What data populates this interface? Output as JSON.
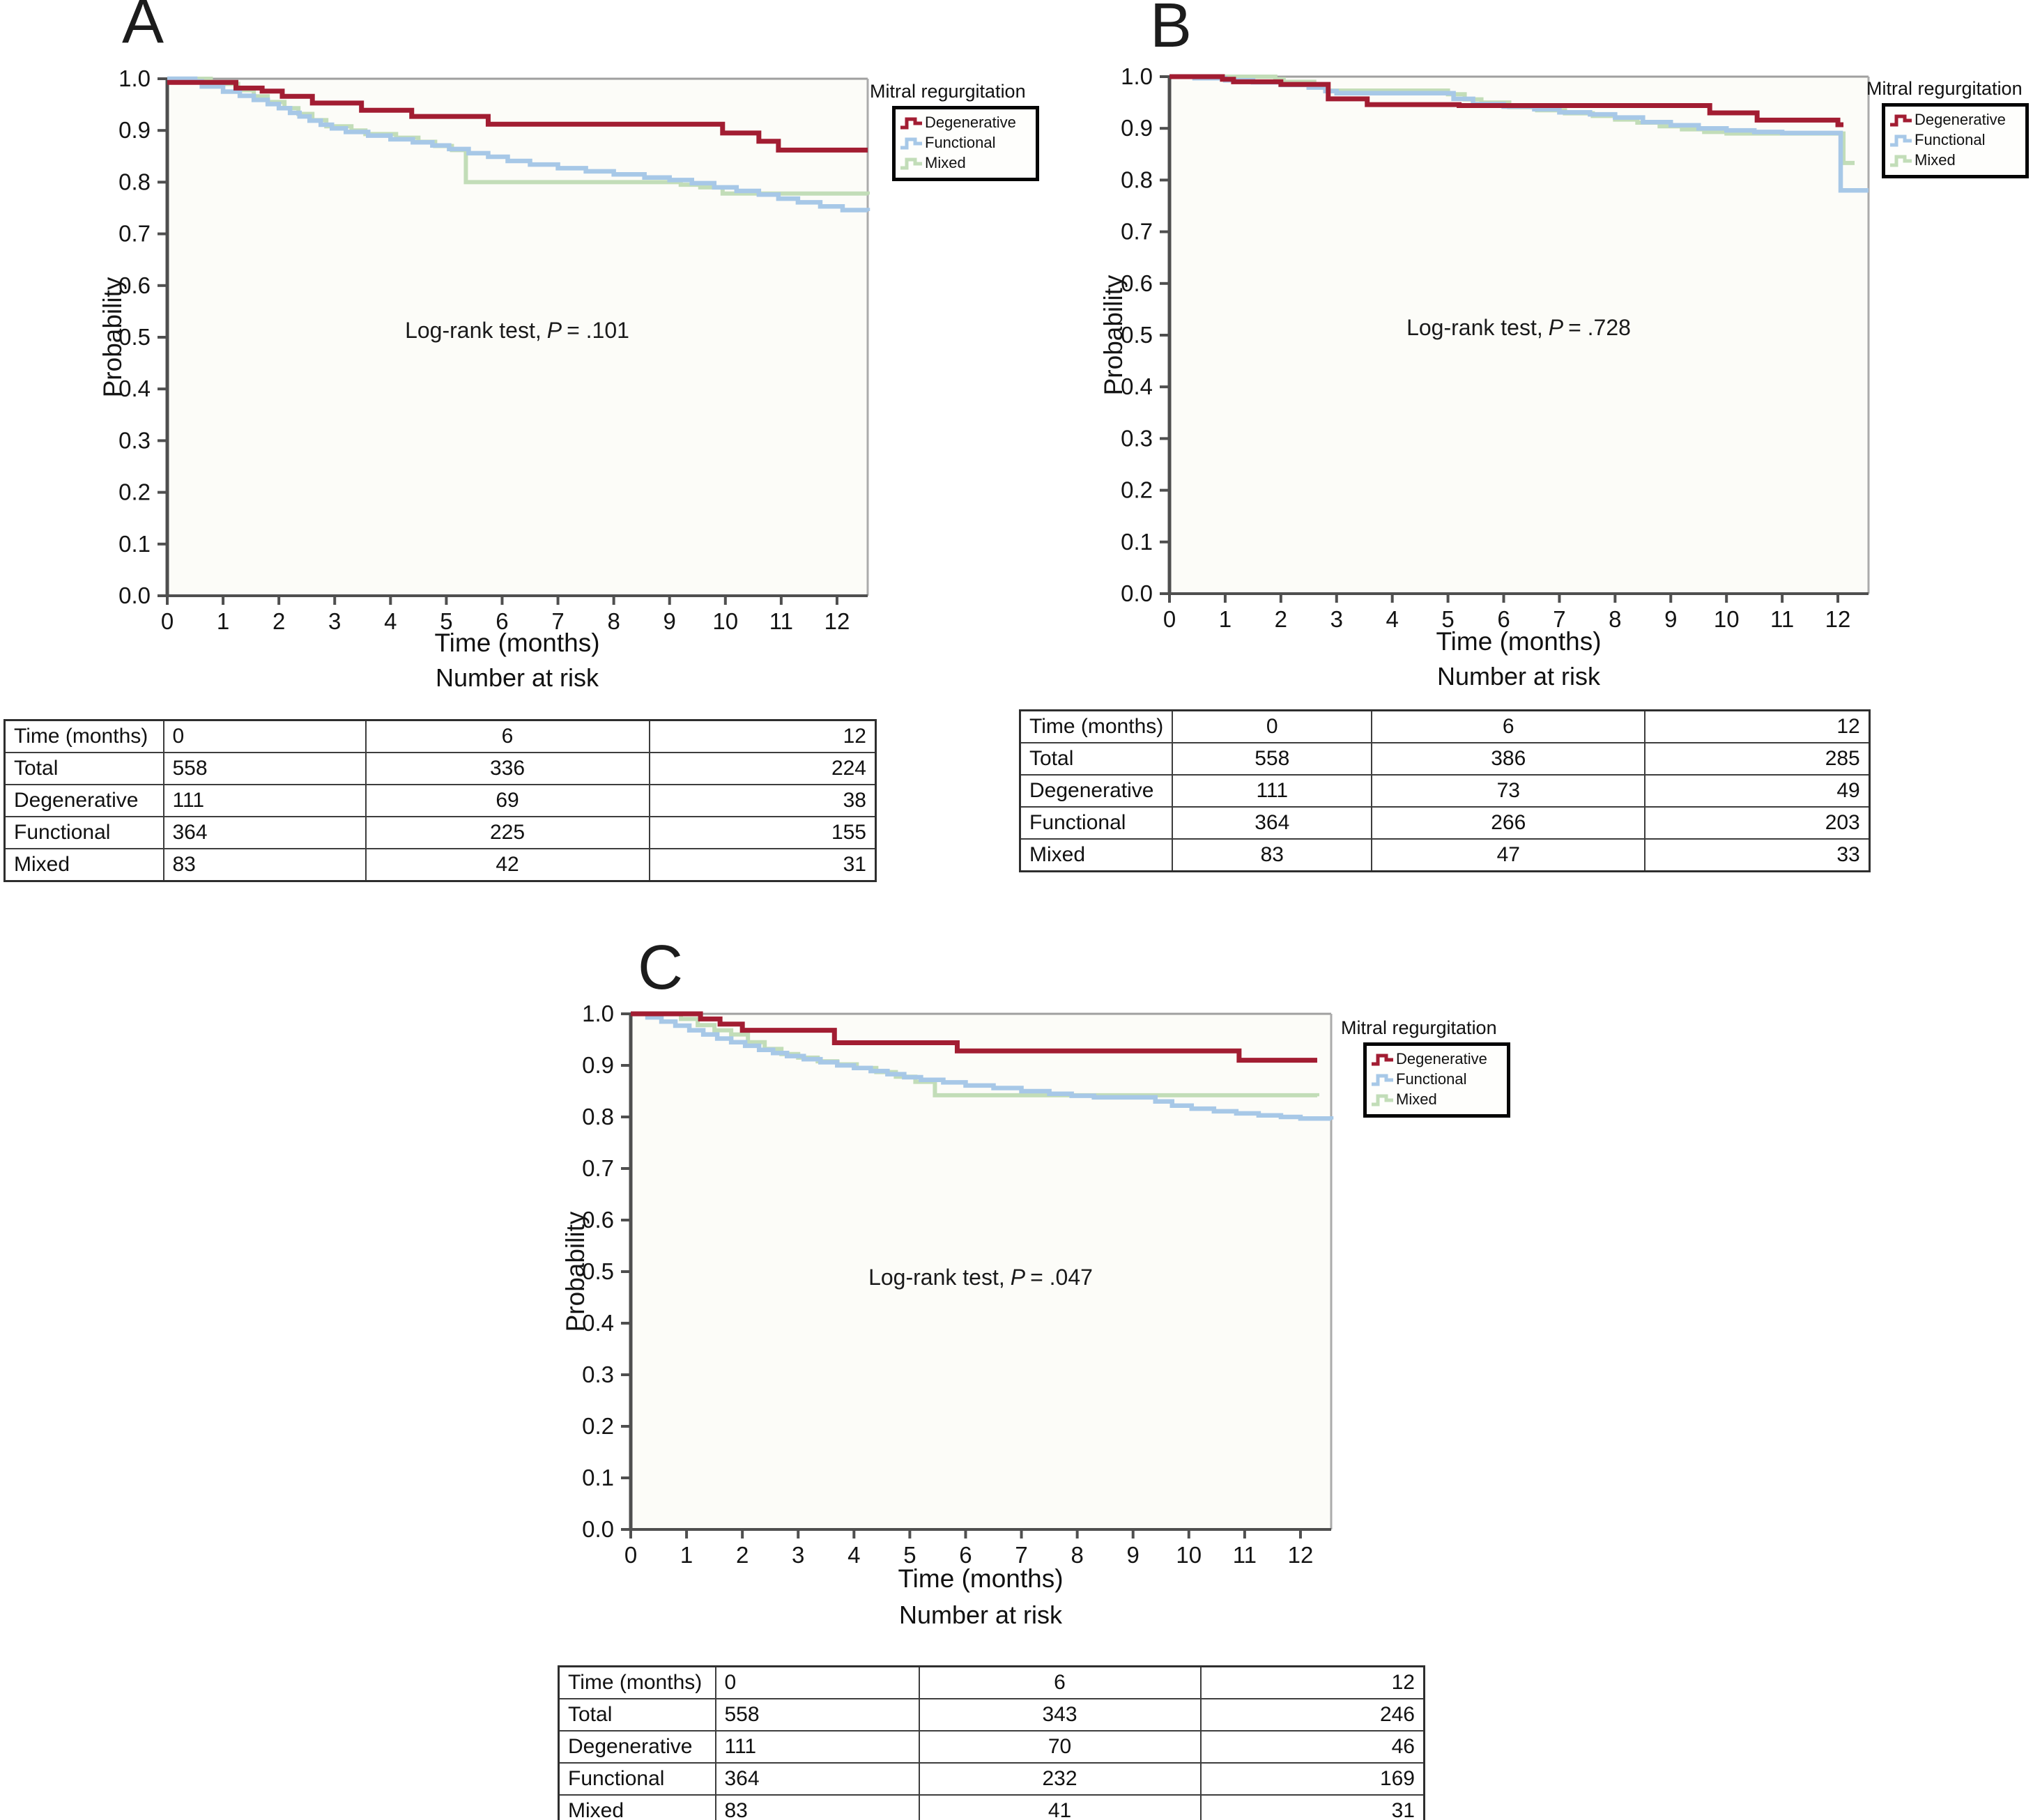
{
  "chart_data": [
    {
      "panel_letter": "A",
      "type": "line",
      "subtype": "kaplan-meier-step",
      "legend_title": "Mitral regurgitation",
      "legend_position": "right-top-outside",
      "xlabel": "Time (months)",
      "xlabel2": "Number at risk",
      "ylabel": "Probability",
      "xlim": [
        0,
        12.55
      ],
      "ylim": [
        0.0,
        1.0
      ],
      "xticks": [
        0,
        1,
        2,
        3,
        4,
        5,
        6,
        7,
        8,
        9,
        10,
        11,
        12
      ],
      "yticks": [
        0.0,
        0.1,
        0.2,
        0.3,
        0.4,
        0.5,
        0.6,
        0.7,
        0.8,
        0.9,
        1.0
      ],
      "grid": false,
      "annotation": {
        "prefix": "Log-rank test,",
        "symbol": "P",
        "value": "= .101"
      },
      "series": [
        {
          "name": "Degenerative",
          "color": "#a21d32",
          "points": [
            [
              0,
              0.993
            ],
            [
              1.23,
              0.982
            ],
            [
              1.7,
              0.976
            ],
            [
              2.06,
              0.966
            ],
            [
              2.6,
              0.953
            ],
            [
              3.48,
              0.939
            ],
            [
              4.38,
              0.927
            ],
            [
              5.75,
              0.912
            ],
            [
              9.95,
              0.895
            ],
            [
              10.6,
              0.879
            ],
            [
              10.95,
              0.862
            ],
            [
              12.55,
              0.862
            ]
          ]
        },
        {
          "name": "Functional",
          "color": "#a7c8e7",
          "points": [
            [
              0,
              1.0
            ],
            [
              0.5,
              0.995
            ],
            [
              0.62,
              0.985
            ],
            [
              1.0,
              0.975
            ],
            [
              1.3,
              0.967
            ],
            [
              1.55,
              0.959
            ],
            [
              1.8,
              0.951
            ],
            [
              2.0,
              0.943
            ],
            [
              2.2,
              0.934
            ],
            [
              2.37,
              0.927
            ],
            [
              2.55,
              0.919
            ],
            [
              2.75,
              0.911
            ],
            [
              2.95,
              0.904
            ],
            [
              3.2,
              0.897
            ],
            [
              3.6,
              0.89
            ],
            [
              4.0,
              0.883
            ],
            [
              4.4,
              0.877
            ],
            [
              4.75,
              0.871
            ],
            [
              5.05,
              0.864
            ],
            [
              5.4,
              0.856
            ],
            [
              5.75,
              0.849
            ],
            [
              6.1,
              0.841
            ],
            [
              6.5,
              0.834
            ],
            [
              7.0,
              0.827
            ],
            [
              7.5,
              0.821
            ],
            [
              8.0,
              0.815
            ],
            [
              8.55,
              0.809
            ],
            [
              9.0,
              0.804
            ],
            [
              9.4,
              0.798
            ],
            [
              9.8,
              0.79
            ],
            [
              10.2,
              0.783
            ],
            [
              10.6,
              0.776
            ],
            [
              10.95,
              0.768
            ],
            [
              11.3,
              0.761
            ],
            [
              11.7,
              0.753
            ],
            [
              12.1,
              0.746
            ],
            [
              12.55,
              0.744
            ]
          ]
        },
        {
          "name": "Mixed",
          "color": "#c2ddb8",
          "points": [
            [
              0,
              1.0
            ],
            [
              0.78,
              0.99
            ],
            [
              1.27,
              0.978
            ],
            [
              1.55,
              0.966
            ],
            [
              1.8,
              0.955
            ],
            [
              2.1,
              0.943
            ],
            [
              2.35,
              0.932
            ],
            [
              2.6,
              0.92
            ],
            [
              2.85,
              0.908
            ],
            [
              3.3,
              0.9
            ],
            [
              3.55,
              0.893
            ],
            [
              4.1,
              0.886
            ],
            [
              4.5,
              0.878
            ],
            [
              4.8,
              0.87
            ],
            [
              5.1,
              0.862
            ],
            [
              5.35,
              0.8
            ],
            [
              9.2,
              0.795
            ],
            [
              9.55,
              0.79
            ],
            [
              9.95,
              0.778
            ],
            [
              12.55,
              0.776
            ]
          ]
        }
      ],
      "risk_table": {
        "header_label": "Time (months)",
        "time_points": [
          "0",
          "6",
          "12"
        ],
        "rows": [
          {
            "label": "Total",
            "values": [
              "558",
              "336",
              "224"
            ]
          },
          {
            "label": "Degenerative",
            "values": [
              "111",
              "69",
              "38"
            ]
          },
          {
            "label": "Functional",
            "values": [
              "364",
              "225",
              "155"
            ]
          },
          {
            "label": "Mixed",
            "values": [
              "83",
              "42",
              "31"
            ]
          }
        ]
      }
    },
    {
      "panel_letter": "B",
      "type": "line",
      "subtype": "kaplan-meier-step",
      "legend_title": "Mitral regurgitation",
      "legend_position": "right-top-outside",
      "xlabel": "Time (months)",
      "xlabel2": "Number at risk",
      "ylabel": "Probability",
      "xlim": [
        0,
        12.55
      ],
      "ylim": [
        0.0,
        1.0
      ],
      "xticks": [
        0,
        1,
        2,
        3,
        4,
        5,
        6,
        7,
        8,
        9,
        10,
        11,
        12
      ],
      "yticks": [
        0.0,
        0.1,
        0.2,
        0.3,
        0.4,
        0.5,
        0.6,
        0.7,
        0.8,
        0.9,
        1.0
      ],
      "grid": false,
      "annotation": {
        "prefix": "Log-rank test,",
        "symbol": "P",
        "value": "= .728"
      },
      "series": [
        {
          "name": "Degenerative",
          "color": "#a21d32",
          "points": [
            [
              0,
              1.0
            ],
            [
              0.95,
              0.995
            ],
            [
              1.15,
              0.99
            ],
            [
              2.0,
              0.985
            ],
            [
              2.85,
              0.957
            ],
            [
              3.55,
              0.946
            ],
            [
              5.2,
              0.944
            ],
            [
              9.7,
              0.93
            ],
            [
              10.55,
              0.916
            ],
            [
              12.0,
              0.907
            ],
            [
              12.1,
              0.907
            ]
          ]
        },
        {
          "name": "Functional",
          "color": "#a7c8e7",
          "points": [
            [
              0,
              1.0
            ],
            [
              0.45,
              0.997
            ],
            [
              1.0,
              0.993
            ],
            [
              1.5,
              0.989
            ],
            [
              2.0,
              0.984
            ],
            [
              2.5,
              0.979
            ],
            [
              2.8,
              0.972
            ],
            [
              3.0,
              0.968
            ],
            [
              5.1,
              0.957
            ],
            [
              5.45,
              0.947
            ],
            [
              6.0,
              0.942
            ],
            [
              6.55,
              0.937
            ],
            [
              7.0,
              0.931
            ],
            [
              7.55,
              0.927
            ],
            [
              8.0,
              0.921
            ],
            [
              8.5,
              0.912
            ],
            [
              9.0,
              0.906
            ],
            [
              9.5,
              0.9
            ],
            [
              10.0,
              0.896
            ],
            [
              10.5,
              0.893
            ],
            [
              11.0,
              0.891
            ],
            [
              12.05,
              0.78
            ],
            [
              12.55,
              0.78
            ]
          ]
        },
        {
          "name": "Mixed",
          "color": "#c2ddb8",
          "points": [
            [
              0,
              1.0
            ],
            [
              1.9,
              0.995
            ],
            [
              2.05,
              0.99
            ],
            [
              2.6,
              0.979
            ],
            [
              2.8,
              0.973
            ],
            [
              5.0,
              0.966
            ],
            [
              5.3,
              0.956
            ],
            [
              5.6,
              0.95
            ],
            [
              6.1,
              0.941
            ],
            [
              6.6,
              0.935
            ],
            [
              7.1,
              0.929
            ],
            [
              7.6,
              0.924
            ],
            [
              8.0,
              0.917
            ],
            [
              8.4,
              0.911
            ],
            [
              8.8,
              0.904
            ],
            [
              9.2,
              0.898
            ],
            [
              9.6,
              0.893
            ],
            [
              10.0,
              0.89
            ],
            [
              12.1,
              0.833
            ],
            [
              12.3,
              0.833
            ]
          ]
        }
      ],
      "risk_table": {
        "header_label": "Time (months)",
        "time_points": [
          "0",
          "6",
          "12"
        ],
        "rows": [
          {
            "label": "Total",
            "values": [
              "558",
              "386",
              "285"
            ]
          },
          {
            "label": "Degenerative",
            "values": [
              "111",
              "73",
              "49"
            ]
          },
          {
            "label": "Functional",
            "values": [
              "364",
              "266",
              "203"
            ]
          },
          {
            "label": "Mixed",
            "values": [
              "83",
              "47",
              "33"
            ]
          }
        ]
      }
    },
    {
      "panel_letter": "C",
      "type": "line",
      "subtype": "kaplan-meier-step",
      "legend_title": "Mitral regurgitation",
      "legend_position": "right-top-outside",
      "xlabel": "Time (months)",
      "xlabel2": "Number at risk",
      "ylabel": "Probability",
      "xlim": [
        0,
        12.55
      ],
      "ylim": [
        0.0,
        1.0
      ],
      "xticks": [
        0,
        1,
        2,
        3,
        4,
        5,
        6,
        7,
        8,
        9,
        10,
        11,
        12
      ],
      "yticks": [
        0.0,
        0.1,
        0.2,
        0.3,
        0.4,
        0.5,
        0.6,
        0.7,
        0.8,
        0.9,
        1.0
      ],
      "grid": false,
      "annotation": {
        "prefix": "Log-rank test,",
        "symbol": "P",
        "value": "= .047"
      },
      "series": [
        {
          "name": "Degenerative",
          "color": "#a21d32",
          "points": [
            [
              0,
              1.0
            ],
            [
              1.25,
              0.99
            ],
            [
              1.6,
              0.98
            ],
            [
              2.0,
              0.968
            ],
            [
              3.65,
              0.944
            ],
            [
              5.85,
              0.928
            ],
            [
              10.9,
              0.91
            ],
            [
              12.3,
              0.91
            ]
          ]
        },
        {
          "name": "Functional",
          "color": "#a7c8e7",
          "points": [
            [
              0,
              1.0
            ],
            [
              0.3,
              0.993
            ],
            [
              0.55,
              0.985
            ],
            [
              0.8,
              0.977
            ],
            [
              1.05,
              0.968
            ],
            [
              1.3,
              0.96
            ],
            [
              1.55,
              0.952
            ],
            [
              1.8,
              0.945
            ],
            [
              2.05,
              0.938
            ],
            [
              2.3,
              0.93
            ],
            [
              2.55,
              0.924
            ],
            [
              2.8,
              0.918
            ],
            [
              3.1,
              0.912
            ],
            [
              3.4,
              0.906
            ],
            [
              3.7,
              0.9
            ],
            [
              4.0,
              0.895
            ],
            [
              4.3,
              0.889
            ],
            [
              4.6,
              0.883
            ],
            [
              4.9,
              0.877
            ],
            [
              5.2,
              0.872
            ],
            [
              5.6,
              0.867
            ],
            [
              6.0,
              0.861
            ],
            [
              6.5,
              0.856
            ],
            [
              7.0,
              0.85
            ],
            [
              7.5,
              0.845
            ],
            [
              7.9,
              0.841
            ],
            [
              8.3,
              0.838
            ],
            [
              9.4,
              0.83
            ],
            [
              9.7,
              0.822
            ],
            [
              10.05,
              0.816
            ],
            [
              10.45,
              0.811
            ],
            [
              10.85,
              0.807
            ],
            [
              11.25,
              0.803
            ],
            [
              11.65,
              0.8
            ],
            [
              12.0,
              0.797
            ],
            [
              12.55,
              0.795
            ]
          ]
        },
        {
          "name": "Mixed",
          "color": "#c2ddb8",
          "points": [
            [
              0,
              1.0
            ],
            [
              0.9,
              0.99
            ],
            [
              1.2,
              0.978
            ],
            [
              1.5,
              0.968
            ],
            [
              1.8,
              0.96
            ],
            [
              2.1,
              0.945
            ],
            [
              2.4,
              0.932
            ],
            [
              2.7,
              0.922
            ],
            [
              3.0,
              0.915
            ],
            [
              3.35,
              0.908
            ],
            [
              3.7,
              0.902
            ],
            [
              4.05,
              0.895
            ],
            [
              4.4,
              0.887
            ],
            [
              4.75,
              0.878
            ],
            [
              5.1,
              0.868
            ],
            [
              5.45,
              0.842
            ],
            [
              12.3,
              0.84
            ]
          ]
        }
      ],
      "risk_table": {
        "header_label": "Time (months)",
        "time_points": [
          "0",
          "6",
          "12"
        ],
        "rows": [
          {
            "label": "Total",
            "values": [
              "558",
              "343",
              "246"
            ]
          },
          {
            "label": "Degenerative",
            "values": [
              "111",
              "70",
              "46"
            ]
          },
          {
            "label": "Functional",
            "values": [
              "364",
              "232",
              "169"
            ]
          },
          {
            "label": "Mixed",
            "values": [
              "83",
              "41",
              "31"
            ]
          }
        ]
      }
    }
  ]
}
